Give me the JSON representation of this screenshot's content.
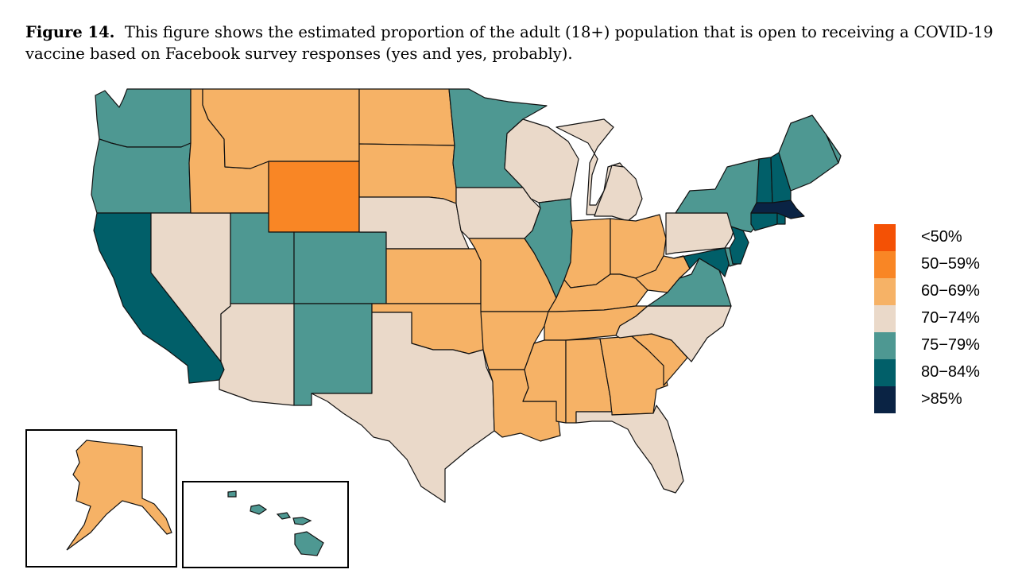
{
  "caption": {
    "label": "Figure 14.",
    "text": "This figure shows the estimated proportion of the adult (18+) population that is open to receiving a COVID-19 vaccine based on Facebook survey responses (yes and yes, probably)."
  },
  "legend": [
    {
      "label": "<50%",
      "color": "#f45105"
    },
    {
      "label": "50−59%",
      "color": "#f98625"
    },
    {
      "label": "60−69%",
      "color": "#f6b266"
    },
    {
      "label": "70−74%",
      "color": "#ead9c9"
    },
    {
      "label": "75−79%",
      "color": "#4e9892"
    },
    {
      "label": "80−84%",
      "color": "#015f69"
    },
    {
      "label": ">85%",
      "color": "#0a2344"
    }
  ],
  "states": {
    "WA": "75-79%",
    "OR": "75-79%",
    "CA": "80-84%",
    "NV": "70-74%",
    "ID": "60-69%",
    "MT": "60-69%",
    "WY": "50-59%",
    "UT": "75-79%",
    "AZ": "70-74%",
    "CO": "75-79%",
    "NM": "75-79%",
    "ND": "60-69%",
    "SD": "60-69%",
    "NE": "70-74%",
    "KS": "60-69%",
    "OK": "60-69%",
    "TX": "70-74%",
    "MN": "75-79%",
    "IA": "70-74%",
    "MO": "60-69%",
    "AR": "60-69%",
    "LA": "60-69%",
    "WI": "70-74%",
    "IL": "75-79%",
    "MI": "70-74%",
    "IN": "60-69%",
    "OH": "60-69%",
    "KY": "60-69%",
    "TN": "60-69%",
    "MS": "60-69%",
    "AL": "60-69%",
    "GA": "60-69%",
    "FL": "70-74%",
    "SC": "60-69%",
    "NC": "70-74%",
    "VA": "75-79%",
    "WV": "60-69%",
    "PA": "70-74%",
    "NY": "75-79%",
    "NJ": "80-84%",
    "DE": "75-79%",
    "MD": "80-84%",
    "CT": "80-84%",
    "RI": "80-84%",
    "MA": ">85%",
    "VT": "80-84%",
    "NH": "80-84%",
    "ME": "75-79%",
    "AK": "60-69%",
    "HI": "75-79%"
  }
}
